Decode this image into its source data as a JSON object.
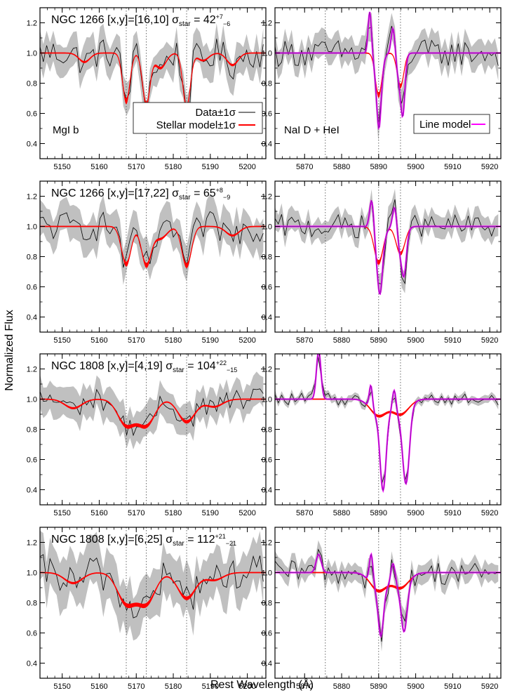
{
  "figure": {
    "ylabel": "Normalized Flux",
    "xlabel": "Rest Wavelength (Å)"
  },
  "colors": {
    "data": "#000000",
    "band": "#c0c0c0",
    "stellar": "#ff0000",
    "line_model": "#ff00ff",
    "line_model_dark": "#7b1fa2"
  },
  "legend": {
    "data": "Data±1σ",
    "stellar": "Stellar model±1σ",
    "line": "Line model"
  },
  "chart_data": [
    {
      "type": "line",
      "panel": "row1-left",
      "galaxy": "NGC 1266",
      "pos": "[x,y]=[16,10]",
      "sigma_value": "42",
      "sigma_up": "+7",
      "sigma_down": "−6",
      "region_label": "MgI b",
      "xlim": [
        5144,
        5205
      ],
      "ylim": [
        0.3,
        1.3
      ],
      "xticks": [
        5150,
        5160,
        5170,
        5180,
        5190,
        5200
      ],
      "yticks": [
        0.4,
        0.6,
        0.8,
        1.0,
        1.2
      ],
      "vlines": [
        5167.3,
        5172.7,
        5183.6
      ],
      "noise": 0.1,
      "band": 0.12,
      "lines": [
        {
          "c": 5167.3,
          "d": 0.32,
          "w": 1.0
        },
        {
          "c": 5172.7,
          "d": 0.34,
          "w": 1.0
        },
        {
          "c": 5183.6,
          "d": 0.36,
          "w": 1.0
        },
        {
          "c": 5176.5,
          "d": 0.1,
          "w": 1.5
        },
        {
          "c": 5156,
          "d": 0.06,
          "w": 1.5
        },
        {
          "c": 5188,
          "d": 0.05,
          "w": 1.5
        },
        {
          "c": 5196,
          "d": 0.08,
          "w": 1.5
        }
      ]
    },
    {
      "type": "line",
      "panel": "row1-right",
      "region_label": "NaI D + HeI",
      "xlim": [
        5862,
        5923
      ],
      "ylim": [
        0.3,
        1.3
      ],
      "xticks": [
        5870,
        5880,
        5890,
        5900,
        5910,
        5920
      ],
      "yticks": [
        0.4,
        0.6,
        0.8,
        1.0,
        1.2
      ],
      "vlines": [
        5875.6,
        5890.0,
        5895.9
      ],
      "noise": 0.09,
      "band": 0.1,
      "lines": [
        {
          "c": 5890,
          "d": 0.28,
          "w": 0.9
        },
        {
          "c": 5895.9,
          "d": 0.22,
          "w": 0.9
        }
      ],
      "gas": [
        {
          "c": 5887.6,
          "a": 0.28,
          "w": 0.45
        },
        {
          "c": 5890.1,
          "a": -0.22,
          "w": 0.5
        },
        {
          "c": 5893.9,
          "a": 0.18,
          "w": 0.5
        },
        {
          "c": 5896.6,
          "a": -0.25,
          "w": 0.5
        }
      ]
    },
    {
      "type": "line",
      "panel": "row2-left",
      "galaxy": "NGC 1266",
      "pos": "[x,y]=[17,22]",
      "sigma_value": "65",
      "sigma_up": "+8",
      "sigma_down": "−9",
      "xlim": [
        5144,
        5205
      ],
      "ylim": [
        0.3,
        1.3
      ],
      "xticks": [
        5150,
        5160,
        5170,
        5180,
        5190,
        5200
      ],
      "yticks": [
        0.4,
        0.6,
        0.8,
        1.0,
        1.2
      ],
      "vlines": [
        5167.3,
        5172.7,
        5183.6
      ],
      "noise": 0.1,
      "band": 0.13,
      "lines": [
        {
          "c": 5167.3,
          "d": 0.25,
          "w": 1.3
        },
        {
          "c": 5172.7,
          "d": 0.25,
          "w": 1.3
        },
        {
          "c": 5183.6,
          "d": 0.26,
          "w": 1.3
        },
        {
          "c": 5176.5,
          "d": 0.08,
          "w": 1.8
        },
        {
          "c": 5196,
          "d": 0.06,
          "w": 1.8
        }
      ]
    },
    {
      "type": "line",
      "panel": "row2-right",
      "xlim": [
        5862,
        5923
      ],
      "ylim": [
        0.3,
        1.3
      ],
      "xticks": [
        5870,
        5880,
        5890,
        5900,
        5910,
        5920
      ],
      "yticks": [
        0.4,
        0.6,
        0.8,
        1.0,
        1.2
      ],
      "vlines": [
        5875.6,
        5890.0,
        5895.9
      ],
      "noise": 0.08,
      "band": 0.08,
      "lines": [
        {
          "c": 5890,
          "d": 0.24,
          "w": 1.2
        },
        {
          "c": 5895.9,
          "d": 0.18,
          "w": 1.2
        }
      ],
      "gas": [
        {
          "c": 5888.2,
          "a": 0.24,
          "w": 0.6
        },
        {
          "c": 5890.4,
          "a": -0.22,
          "w": 0.6
        },
        {
          "c": 5894.4,
          "a": 0.2,
          "w": 0.6
        },
        {
          "c": 5896.9,
          "a": -0.2,
          "w": 0.6
        }
      ]
    },
    {
      "type": "line",
      "panel": "row3-left",
      "galaxy": "NGC 1808",
      "pos": "[x,y]=[4,19]",
      "sigma_value": "104",
      "sigma_up": "+22",
      "sigma_down": "−15",
      "xlim": [
        5144,
        5205
      ],
      "ylim": [
        0.3,
        1.3
      ],
      "xticks": [
        5150,
        5160,
        5170,
        5180,
        5190,
        5200
      ],
      "yticks": [
        0.4,
        0.6,
        0.8,
        1.0,
        1.2
      ],
      "vlines": [
        5167.3,
        5172.7,
        5183.6
      ],
      "noise": 0.07,
      "band": 0.12,
      "lines": [
        {
          "c": 5167.3,
          "d": 0.17,
          "w": 2.3
        },
        {
          "c": 5172.7,
          "d": 0.17,
          "w": 2.3
        },
        {
          "c": 5183.6,
          "d": 0.15,
          "w": 2.3
        },
        {
          "c": 5153,
          "d": 0.06,
          "w": 2.3
        },
        {
          "c": 5191,
          "d": 0.05,
          "w": 2.3
        }
      ]
    },
    {
      "type": "line",
      "panel": "row3-right",
      "xlim": [
        5862,
        5923
      ],
      "ylim": [
        0.3,
        1.3
      ],
      "xticks": [
        5870,
        5880,
        5890,
        5900,
        5910,
        5920
      ],
      "yticks": [
        0.4,
        0.6,
        0.8,
        1.0,
        1.2
      ],
      "vlines": [
        5875.6,
        5890.0,
        5895.9
      ],
      "noise": 0.04,
      "band": 0.03,
      "lines": [
        {
          "c": 5890,
          "d": 0.11,
          "w": 2.2
        },
        {
          "c": 5895.9,
          "d": 0.1,
          "w": 2.2
        }
      ],
      "gas": [
        {
          "c": 5873.8,
          "a": 0.32,
          "w": 0.6
        },
        {
          "c": 5887.9,
          "a": 0.16,
          "w": 0.45
        },
        {
          "c": 5891.2,
          "a": -0.5,
          "w": 0.8
        },
        {
          "c": 5894.2,
          "a": 0.15,
          "w": 0.5
        },
        {
          "c": 5897.4,
          "a": -0.48,
          "w": 0.9
        }
      ]
    },
    {
      "type": "line",
      "panel": "row4-left",
      "galaxy": "NGC 1808",
      "pos": "[x,y]=[6,25]",
      "sigma_value": "112",
      "sigma_up": "+21",
      "sigma_down": "−21",
      "xlim": [
        5144,
        5205
      ],
      "ylim": [
        0.3,
        1.3
      ],
      "xticks": [
        5150,
        5160,
        5170,
        5180,
        5190,
        5200
      ],
      "yticks": [
        0.4,
        0.6,
        0.8,
        1.0,
        1.2
      ],
      "vlines": [
        5167.3,
        5172.7,
        5183.6
      ],
      "noise": 0.12,
      "band": 0.18,
      "lines": [
        {
          "c": 5167.3,
          "d": 0.2,
          "w": 2.4
        },
        {
          "c": 5172.7,
          "d": 0.2,
          "w": 2.4
        },
        {
          "c": 5183.6,
          "d": 0.17,
          "w": 2.4
        },
        {
          "c": 5153,
          "d": 0.07,
          "w": 2.4
        },
        {
          "c": 5191,
          "d": 0.05,
          "w": 2.4
        }
      ]
    },
    {
      "type": "line",
      "panel": "row4-right",
      "xlim": [
        5862,
        5923
      ],
      "ylim": [
        0.3,
        1.3
      ],
      "xticks": [
        5870,
        5880,
        5890,
        5900,
        5910,
        5920
      ],
      "yticks": [
        0.4,
        0.6,
        0.8,
        1.0,
        1.2
      ],
      "vlines": [
        5875.6,
        5890.0,
        5895.9
      ],
      "noise": 0.08,
      "band": 0.07,
      "lines": [
        {
          "c": 5890,
          "d": 0.12,
          "w": 2.2
        },
        {
          "c": 5895.9,
          "d": 0.1,
          "w": 2.2
        }
      ],
      "gas": [
        {
          "c": 5873.8,
          "a": 0.12,
          "w": 0.7
        },
        {
          "c": 5888.0,
          "a": 0.2,
          "w": 0.5
        },
        {
          "c": 5890.6,
          "a": -0.3,
          "w": 0.7
        },
        {
          "c": 5893.9,
          "a": 0.15,
          "w": 0.6
        },
        {
          "c": 5896.9,
          "a": -0.3,
          "w": 0.8
        }
      ]
    }
  ]
}
